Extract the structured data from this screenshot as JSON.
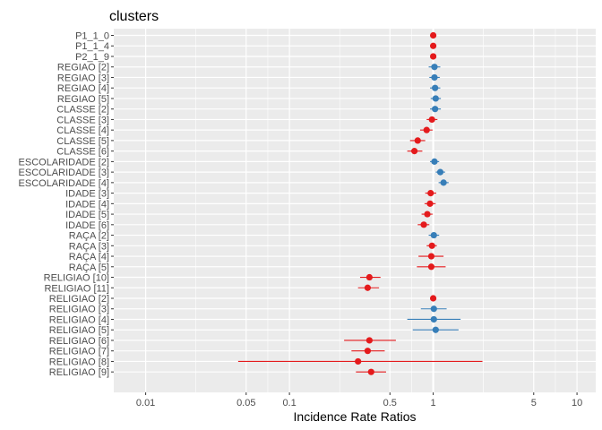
{
  "chart_data": {
    "type": "scatter",
    "title": "clusters",
    "xlabel": "Incidence Rate Ratios",
    "ylabel": "",
    "x_scale": "log10",
    "xlim": [
      0.006,
      13.5
    ],
    "x_ticks": [
      0.01,
      0.05,
      0.1,
      0.5,
      1,
      5,
      10
    ],
    "x_tick_labels": [
      "0.01",
      "0.05",
      "0.1",
      "0.5",
      "1",
      "5",
      "10"
    ],
    "reference_line": 1,
    "grid": true,
    "colors": {
      "positive": "#377EB8",
      "negative": "#E41A1C",
      "panel": "#EBEBEB",
      "grid": "#FFFFFF"
    },
    "terms": [
      {
        "label": "P1_1_0",
        "estimate": 1.0,
        "ci_low": 0.97,
        "ci_high": 1.03,
        "group": "negative"
      },
      {
        "label": "P1_1_4",
        "estimate": 1.0,
        "ci_low": 0.97,
        "ci_high": 1.03,
        "group": "negative"
      },
      {
        "label": "P2_1_9",
        "estimate": 1.0,
        "ci_low": 0.97,
        "ci_high": 1.03,
        "group": "negative"
      },
      {
        "label": "REGIAO [2]",
        "estimate": 1.02,
        "ci_low": 0.93,
        "ci_high": 1.12,
        "group": "positive"
      },
      {
        "label": "REGIAO [3]",
        "estimate": 1.02,
        "ci_low": 0.94,
        "ci_high": 1.11,
        "group": "positive"
      },
      {
        "label": "REGIAO [4]",
        "estimate": 1.03,
        "ci_low": 0.95,
        "ci_high": 1.12,
        "group": "positive"
      },
      {
        "label": "REGIAO [5]",
        "estimate": 1.04,
        "ci_low": 0.96,
        "ci_high": 1.13,
        "group": "positive"
      },
      {
        "label": "CLASSE [2]",
        "estimate": 1.03,
        "ci_low": 0.95,
        "ci_high": 1.13,
        "group": "positive"
      },
      {
        "label": "CLASSE [3]",
        "estimate": 0.98,
        "ci_low": 0.9,
        "ci_high": 1.07,
        "group": "negative"
      },
      {
        "label": "CLASSE [4]",
        "estimate": 0.9,
        "ci_low": 0.81,
        "ci_high": 0.99,
        "group": "negative"
      },
      {
        "label": "CLASSE [5]",
        "estimate": 0.78,
        "ci_low": 0.69,
        "ci_high": 0.88,
        "group": "negative"
      },
      {
        "label": "CLASSE [6]",
        "estimate": 0.74,
        "ci_low": 0.66,
        "ci_high": 0.84,
        "group": "negative"
      },
      {
        "label": "ESCOLARIDADE [2]",
        "estimate": 1.02,
        "ci_low": 0.95,
        "ci_high": 1.1,
        "group": "positive"
      },
      {
        "label": "ESCOLARIDADE [3]",
        "estimate": 1.12,
        "ci_low": 1.04,
        "ci_high": 1.21,
        "group": "positive"
      },
      {
        "label": "ESCOLARIDADE [4]",
        "estimate": 1.18,
        "ci_low": 1.09,
        "ci_high": 1.28,
        "group": "positive"
      },
      {
        "label": "IDADE [3]",
        "estimate": 0.96,
        "ci_low": 0.88,
        "ci_high": 1.05,
        "group": "negative"
      },
      {
        "label": "IDADE [4]",
        "estimate": 0.95,
        "ci_low": 0.87,
        "ci_high": 1.04,
        "group": "negative"
      },
      {
        "label": "IDADE [5]",
        "estimate": 0.91,
        "ci_low": 0.83,
        "ci_high": 0.99,
        "group": "negative"
      },
      {
        "label": "IDADE [6]",
        "estimate": 0.86,
        "ci_low": 0.78,
        "ci_high": 0.94,
        "group": "negative"
      },
      {
        "label": "RAÇA [2]",
        "estimate": 1.01,
        "ci_low": 0.93,
        "ci_high": 1.1,
        "group": "positive"
      },
      {
        "label": "RAÇA [3]",
        "estimate": 0.98,
        "ci_low": 0.9,
        "ci_high": 1.06,
        "group": "negative"
      },
      {
        "label": "RAÇA [4]",
        "estimate": 0.97,
        "ci_low": 0.79,
        "ci_high": 1.18,
        "group": "negative"
      },
      {
        "label": "RAÇA [5]",
        "estimate": 0.97,
        "ci_low": 0.77,
        "ci_high": 1.22,
        "group": "negative"
      },
      {
        "label": "RELIGIAO [10]",
        "estimate": 0.36,
        "ci_low": 0.31,
        "ci_high": 0.43,
        "group": "negative"
      },
      {
        "label": "RELIGIAO [11]",
        "estimate": 0.35,
        "ci_low": 0.3,
        "ci_high": 0.42,
        "group": "negative"
      },
      {
        "label": "RELIGIAO [2]",
        "estimate": 1.0,
        "ci_low": 0.95,
        "ci_high": 1.05,
        "group": "negative"
      },
      {
        "label": "RELIGIAO [3]",
        "estimate": 1.01,
        "ci_low": 0.82,
        "ci_high": 1.24,
        "group": "positive"
      },
      {
        "label": "RELIGIAO [4]",
        "estimate": 1.01,
        "ci_low": 0.66,
        "ci_high": 1.55,
        "group": "positive"
      },
      {
        "label": "RELIGIAO [5]",
        "estimate": 1.04,
        "ci_low": 0.72,
        "ci_high": 1.5,
        "group": "positive"
      },
      {
        "label": "RELIGIAO [6]",
        "estimate": 0.36,
        "ci_low": 0.24,
        "ci_high": 0.55,
        "group": "negative"
      },
      {
        "label": "RELIGIAO [7]",
        "estimate": 0.35,
        "ci_low": 0.27,
        "ci_high": 0.46,
        "group": "negative"
      },
      {
        "label": "RELIGIAO [8]",
        "estimate": 0.3,
        "ci_low": 0.044,
        "ci_high": 2.2,
        "group": "negative"
      },
      {
        "label": "RELIGIAO [9]",
        "estimate": 0.37,
        "ci_low": 0.29,
        "ci_high": 0.47,
        "group": "negative"
      }
    ]
  }
}
